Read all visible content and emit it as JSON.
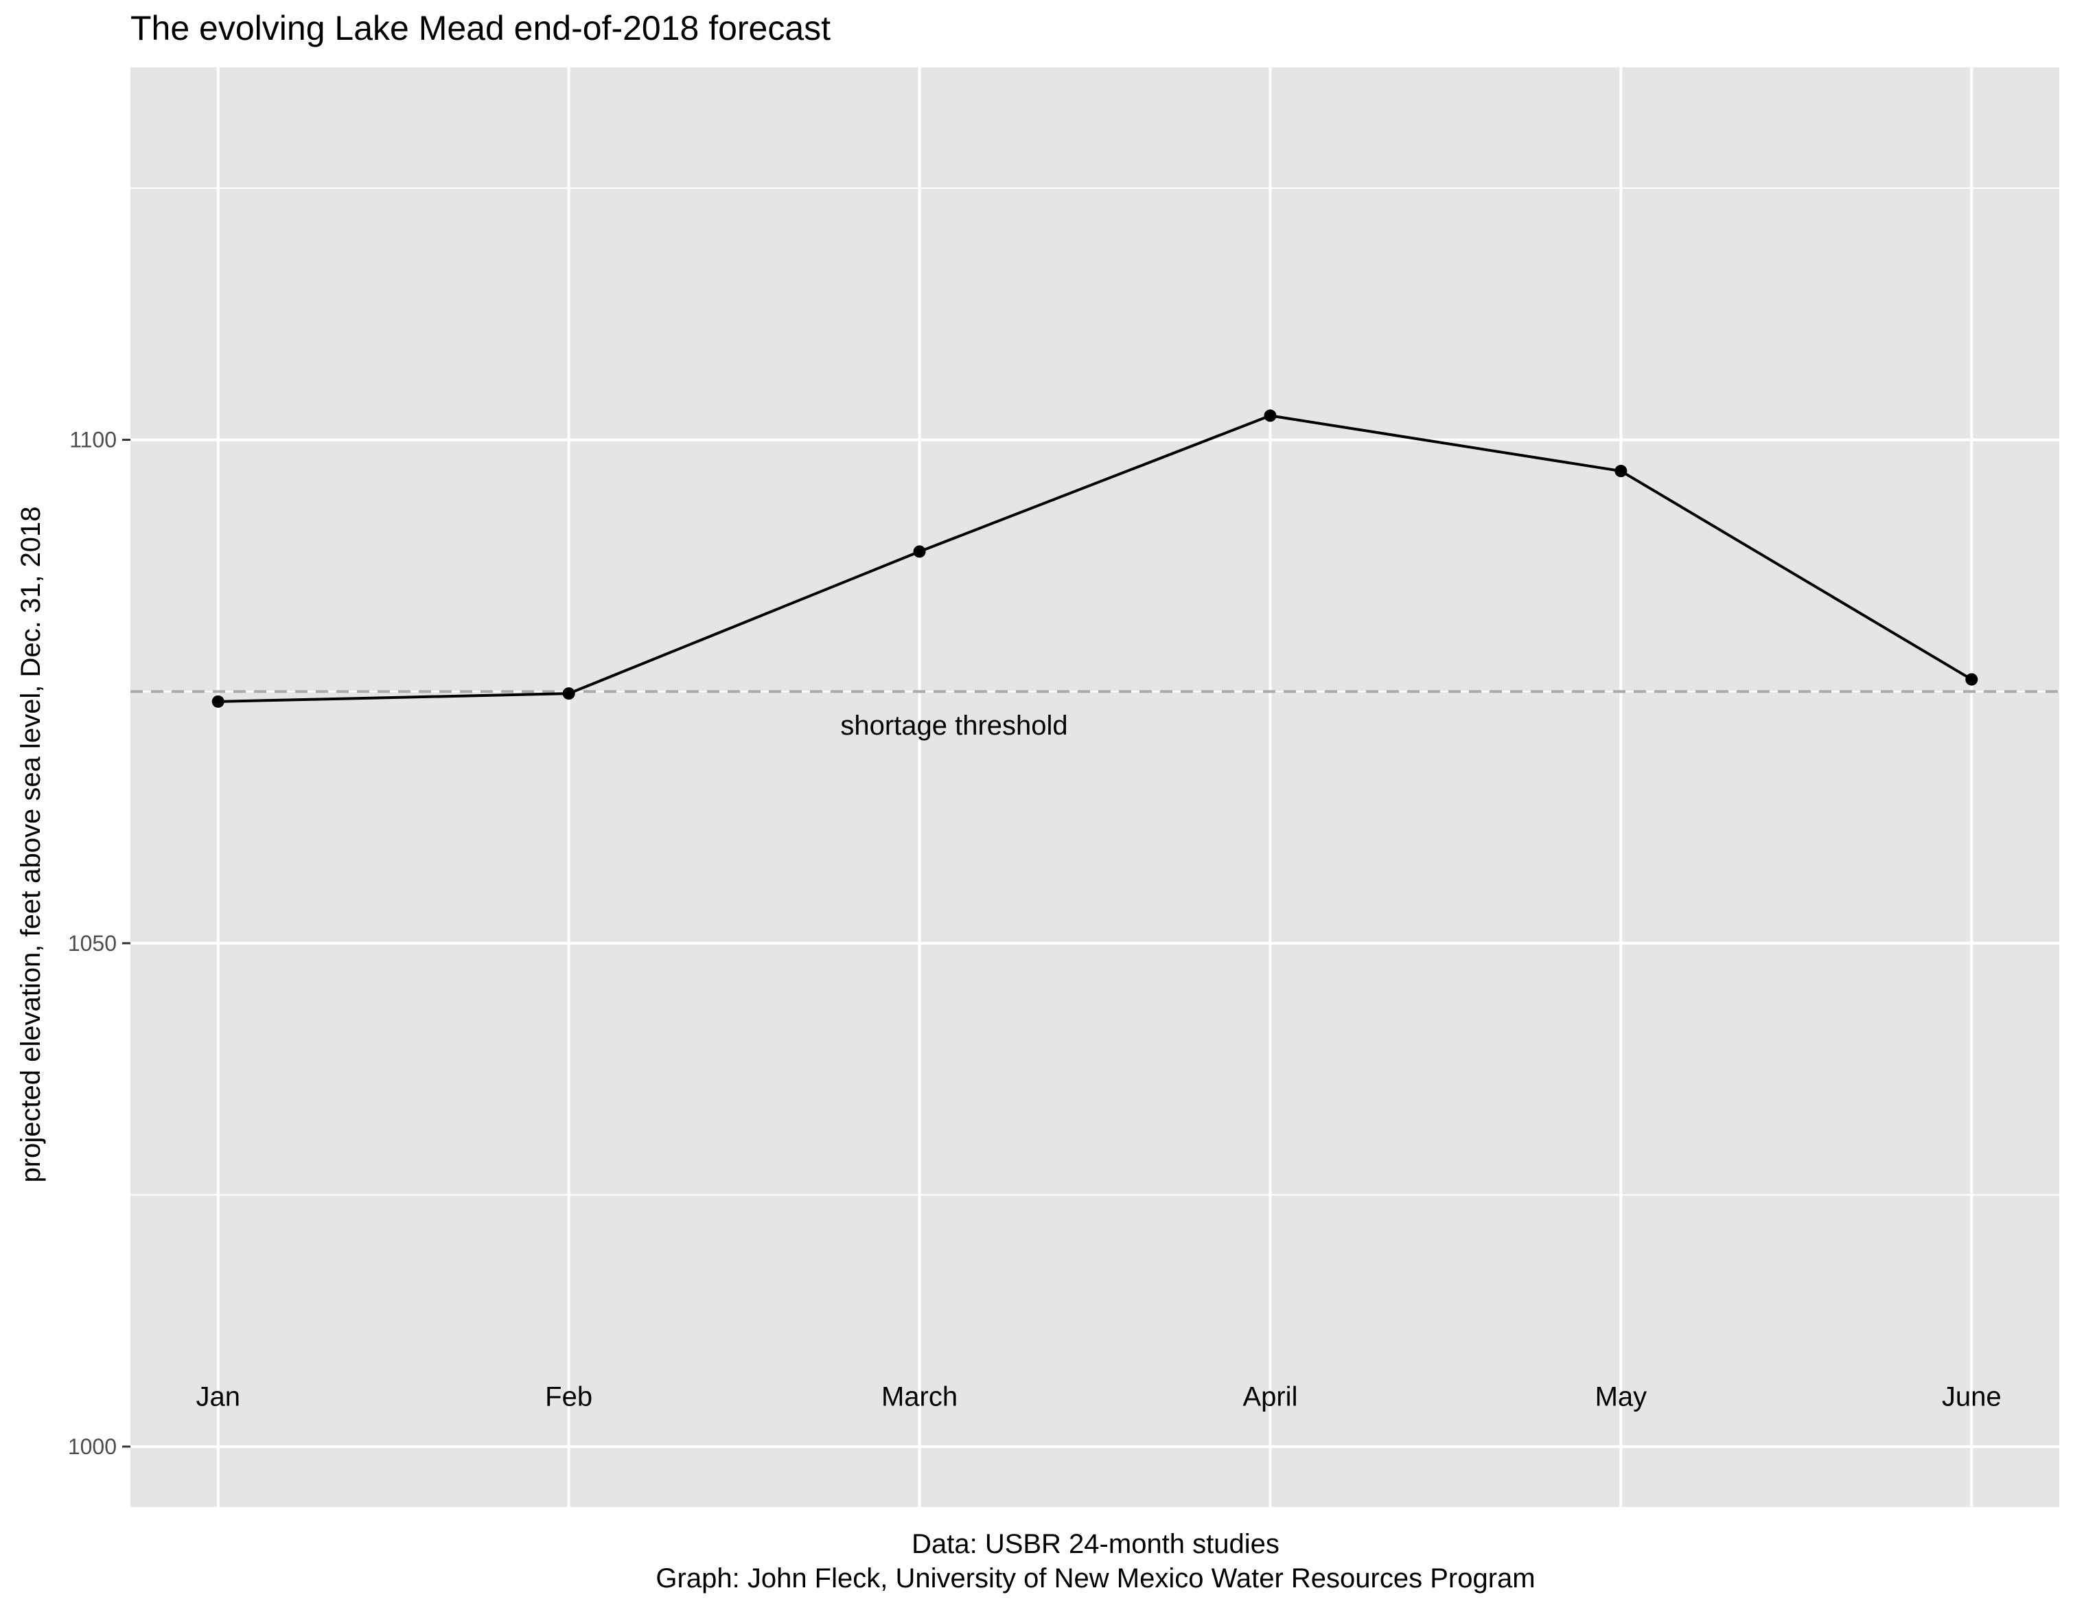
{
  "chart_data": {
    "type": "line",
    "title": "The evolving Lake Mead end-of-2018 forecast",
    "ylabel": "projected elevation, feet above sea level, Dec. 31, 2018",
    "xlabel": "",
    "x_labels": [
      "Jan",
      "Feb",
      "March",
      "April",
      "May",
      "June"
    ],
    "values": [
      1074.0,
      1074.8,
      1088.9,
      1102.4,
      1096.9,
      1076.2
    ],
    "ylim": [
      994,
      1137
    ],
    "y_ticks": [
      1000,
      1050,
      1100
    ],
    "y_minor_ticks": [
      1025,
      1075,
      1125
    ],
    "grid": true,
    "reference_line": {
      "value": 1075,
      "label": "shortage threshold",
      "color": "#aaaaaa",
      "style": "dashed"
    },
    "series_color": "#000000",
    "panel_background": "#e5e5e5",
    "grid_color": "#ffffff",
    "caption_lines": [
      "Data: USBR 24-month studies",
      "Graph: John Fleck, University of New Mexico Water Resources Program"
    ]
  }
}
